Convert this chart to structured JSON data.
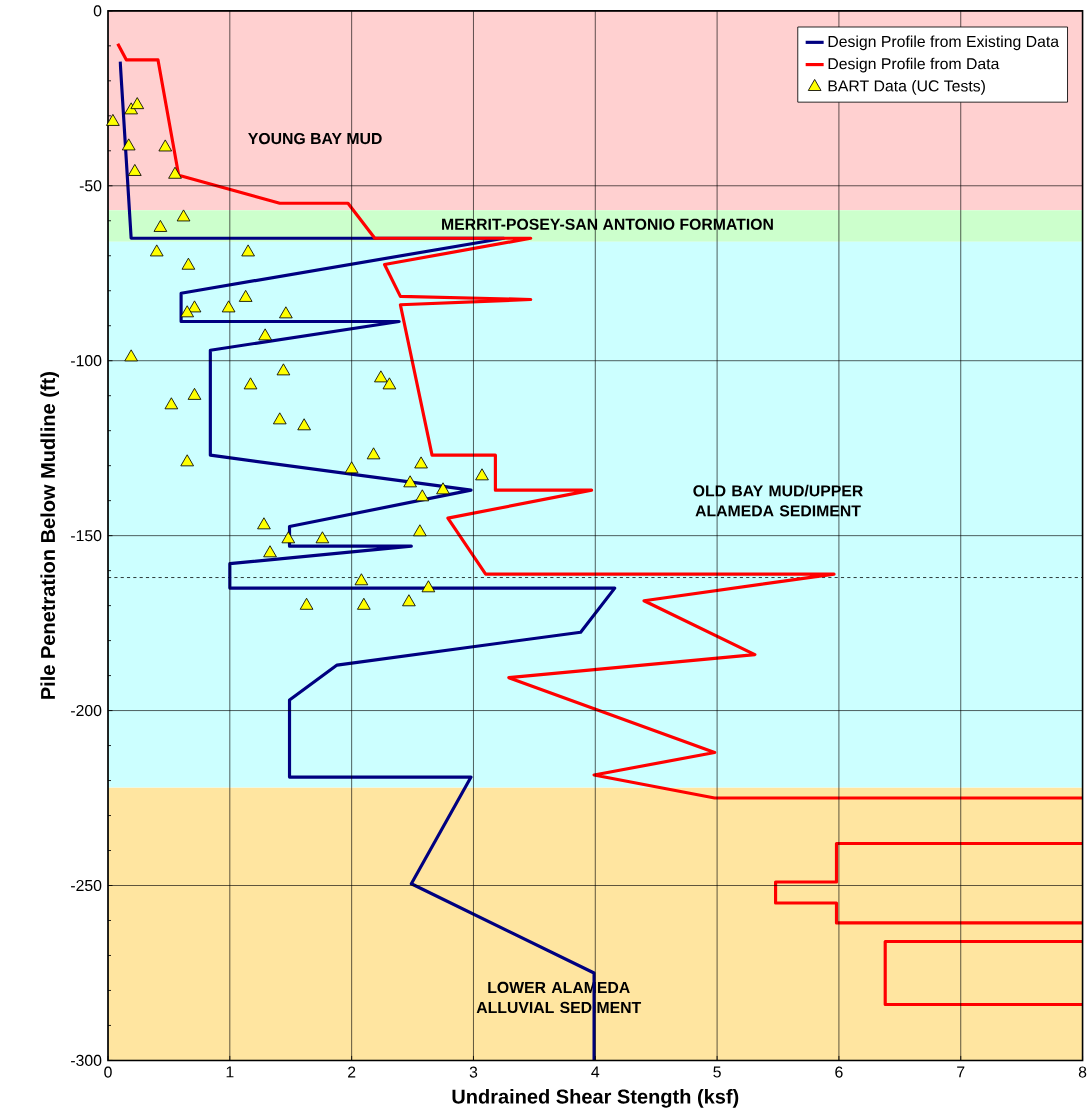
{
  "chart_data": {
    "type": "line",
    "xlabel": "Undrained Shear Stength (ksf)",
    "ylabel": "Pile Penetration Below Mudline (ft)",
    "xlim": [
      0,
      8
    ],
    "xticks": [
      0,
      1,
      2,
      3,
      4,
      5,
      6,
      7,
      8
    ],
    "ylim": [
      -300,
      0
    ],
    "yticks": [
      -300,
      -250,
      -200,
      -150,
      -100,
      -50,
      0
    ],
    "grid": true,
    "legend": "top right",
    "bands": [
      {
        "axis": "y",
        "from": 0,
        "to": -57,
        "label": "YOUNG BAY MUD",
        "color": "#ffd0d0"
      },
      {
        "axis": "y",
        "from": -57,
        "to": -66,
        "label": "MERRIT-POSEY-SAN ANTONIO FORMATION",
        "color": "#ccffcc"
      },
      {
        "axis": "y",
        "from": -66,
        "to": -222,
        "label": "OLD BAY MUD/UPPER ALAMEDA SEDIMENT",
        "color": "#ccffff"
      },
      {
        "axis": "y",
        "from": -222,
        "to": -300,
        "label": "LOWER ALAMEDA ALLUVIAL SEDIMENT",
        "color": "#ffe5a0"
      }
    ],
    "ref_lines": [
      {
        "axis": "y",
        "value": -162,
        "color": "#000000",
        "line_style": "dashed"
      }
    ],
    "series": [
      {
        "name": "Design Profile from Existing Data",
        "color": "#000080",
        "x": [
          0.1,
          0.19,
          3.25,
          0.6,
          0.6,
          2.39,
          0.84,
          0.84,
          2.98,
          1.49,
          1.49,
          2.49,
          1.0,
          1.0,
          4.16,
          3.88,
          1.88,
          1.49,
          1.49,
          2.98,
          2.49,
          3.99,
          3.99
        ],
        "values": [
          -14.5,
          -65,
          -65,
          -80.7,
          -88.8,
          -88.8,
          -97,
          -127,
          -137,
          -147.4,
          -153,
          -153,
          -158,
          -165,
          -165,
          -177.6,
          -187,
          -197,
          -219,
          -219,
          -249.5,
          -275,
          -300
        ]
      },
      {
        "name": "Design Profile from Data",
        "color": "#ff0000",
        "x": [
          0.08,
          0.15,
          0.41,
          0.58,
          1.41,
          1.97,
          2.19,
          3.47,
          2.27,
          2.4,
          3.47,
          2.4,
          2.66,
          3.18,
          3.18,
          3.97,
          2.79,
          3.1,
          5.96,
          4.4,
          5.31,
          3.29,
          4.98,
          3.99,
          4.98,
          8,
          null,
          8,
          5.98,
          5.98,
          5.48,
          5.48,
          5.98,
          5.98,
          8,
          null,
          8,
          6.38,
          6.38,
          8
        ],
        "values": [
          -9.4,
          -14,
          -14,
          -47,
          -55,
          -55,
          -65,
          -65,
          -72.5,
          -81.6,
          -82.5,
          -84,
          -127,
          -127,
          -137,
          -137,
          -145,
          -161,
          -161,
          -168.6,
          -184,
          -190.6,
          -212,
          -218.4,
          -225,
          -225,
          null,
          -238,
          -238,
          -249,
          -249,
          -255,
          -255,
          -260.7,
          -260.7,
          null,
          -266,
          -266,
          -284,
          -284
        ]
      },
      {
        "name": "BART Data (UC Tests)",
        "type": "scatter",
        "marker": "triangle",
        "color": "#ffff00",
        "x": [
          0.04,
          0.19,
          0.24,
          0.17,
          0.47,
          0.22,
          0.55,
          0.62,
          0.43,
          0.4,
          0.66,
          1.15,
          1.13,
          0.99,
          0.71,
          0.65,
          1.46,
          1.29,
          0.19,
          1.44,
          2.24,
          2.31,
          1.17,
          0.71,
          0.52,
          1.41,
          1.61,
          2.18,
          0.65,
          2.0,
          2.57,
          3.07,
          2.48,
          2.75,
          2.58,
          1.28,
          1.48,
          1.76,
          2.56,
          1.33,
          2.08,
          2.63,
          2.47,
          1.63,
          2.1
        ],
        "values": [
          -31.7,
          -28.4,
          -26.9,
          -38.7,
          -39,
          -46,
          -46.8,
          -59,
          -62,
          -69,
          -72.8,
          -69,
          -82,
          -85,
          -85,
          -86.4,
          -86.7,
          -93,
          -99,
          -103,
          -105,
          -107,
          -107,
          -110,
          -112.7,
          -117,
          -118.7,
          -127,
          -129,
          -131,
          -129.6,
          -133,
          -135,
          -137,
          -139,
          -147,
          -151,
          -151,
          -149,
          -155,
          -163,
          -165,
          -169,
          -170,
          -170
        ]
      }
    ]
  }
}
